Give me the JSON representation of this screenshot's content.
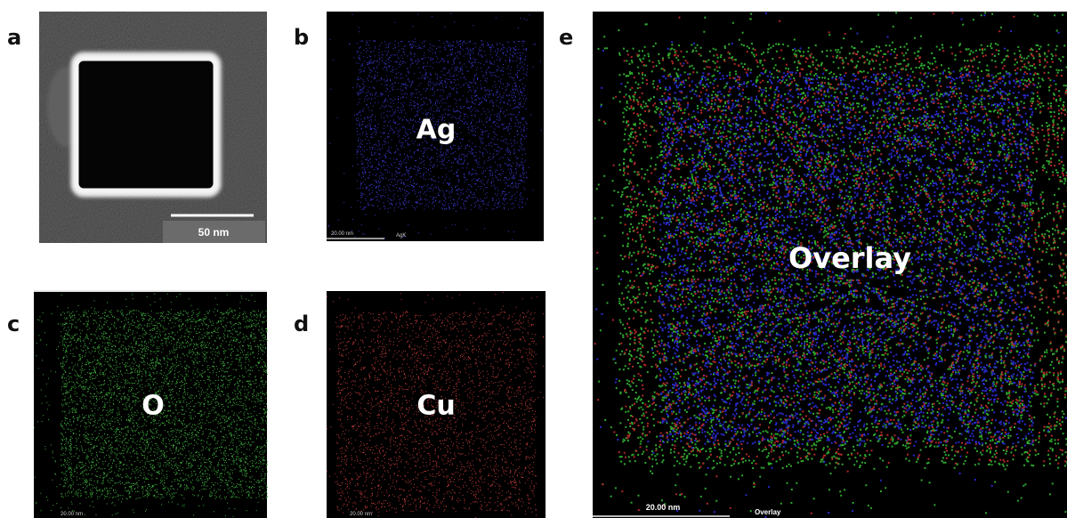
{
  "panels": [
    {
      "label": "a",
      "scale_bar": "50 nm"
    },
    {
      "label": "b",
      "element": "Ag",
      "scale_bar": "20.00 nm",
      "map_label": "AgK"
    },
    {
      "label": "c",
      "element": "O",
      "scale_bar": "20.00 nm"
    },
    {
      "label": "d",
      "element": "Cu",
      "scale_bar": "20.00 nm"
    },
    {
      "label": "e",
      "element": "Overlay",
      "scale_bar": "20.00 nm",
      "map_label": "Overlay"
    }
  ]
}
